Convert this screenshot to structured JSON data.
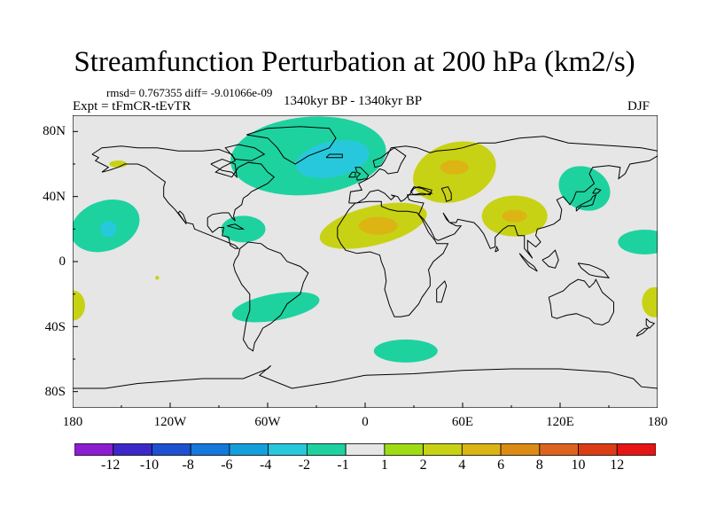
{
  "title": "Streamfunction Perturbation at 200 hPa (km2/s)",
  "stats": "rmsd= 0.767355 diff= -9.01066e-09",
  "experiment": "Expt = tFmCR-tEvTR",
  "period": "1340kyr BP - 1340kyr BP",
  "season": "DJF",
  "lat_labels": [
    "80N",
    "40N",
    "0",
    "40S",
    "80S"
  ],
  "lon_labels": [
    "180",
    "120W",
    "60W",
    "0",
    "60E",
    "120E",
    "180"
  ],
  "colorbar": {
    "labels": [
      "-12",
      "-10",
      "-8",
      "-6",
      "-4",
      "-2",
      "-1",
      "1",
      "2",
      "4",
      "6",
      "8",
      "10",
      "12"
    ],
    "colors": [
      "#8c1ed2",
      "#3c28c8",
      "#1e50d2",
      "#1478dc",
      "#14a0dc",
      "#28c8dc",
      "#1ed2a0",
      "#e6e6e6",
      "#a0dc14",
      "#c8d214",
      "#dcb414",
      "#dc8c14",
      "#dc641e",
      "#dc3c14",
      "#e61414"
    ]
  },
  "map": {
    "background_color": "#e6e6e6",
    "coast_color": "#000000",
    "anomalies": [
      {
        "name": "north-atlantic-low",
        "lon": -35,
        "lat": 65,
        "level": -2
      },
      {
        "name": "north-atlantic-low-core",
        "lon": -20,
        "lat": 63,
        "level": -4
      },
      {
        "name": "pacific-low",
        "lon": -160,
        "lat": 22,
        "level": -2
      },
      {
        "name": "pacific-low-core",
        "lon": -158,
        "lat": 20,
        "level": -4
      },
      {
        "name": "caribbean-low",
        "lon": -75,
        "lat": 20,
        "level": -2
      },
      {
        "name": "south-america-low",
        "lon": -55,
        "lat": -28,
        "level": -2
      },
      {
        "name": "southern-ocean-low",
        "lon": 25,
        "lat": -55,
        "level": -2
      },
      {
        "name": "west-pacific-low",
        "lon": 135,
        "lat": 45,
        "level": -2
      },
      {
        "name": "east-pacific-low",
        "lon": 172,
        "lat": 12,
        "level": -2
      },
      {
        "name": "siberian-high",
        "lon": 55,
        "lat": 55,
        "level": 2
      },
      {
        "name": "siberian-high-core",
        "lon": 55,
        "lat": 58,
        "level": 4
      },
      {
        "name": "sahara-high",
        "lon": 5,
        "lat": 22,
        "level": 2
      },
      {
        "name": "sahara-high-core",
        "lon": 8,
        "lat": 22,
        "level": 4
      },
      {
        "name": "tibet-high",
        "lon": 92,
        "lat": 28,
        "level": 2
      },
      {
        "name": "tibet-high-core",
        "lon": 92,
        "lat": 28,
        "level": 4
      },
      {
        "name": "southwest-pacific-high",
        "lon": 178,
        "lat": -25,
        "level": 2
      },
      {
        "name": "south-pacific-high-edge",
        "lon": -180,
        "lat": -27,
        "level": 2
      },
      {
        "name": "alaska-spot",
        "lon": -152,
        "lat": 60,
        "level": 2
      },
      {
        "name": "tropical-pacific-dot",
        "lon": -128,
        "lat": -10,
        "level": 2
      }
    ]
  }
}
